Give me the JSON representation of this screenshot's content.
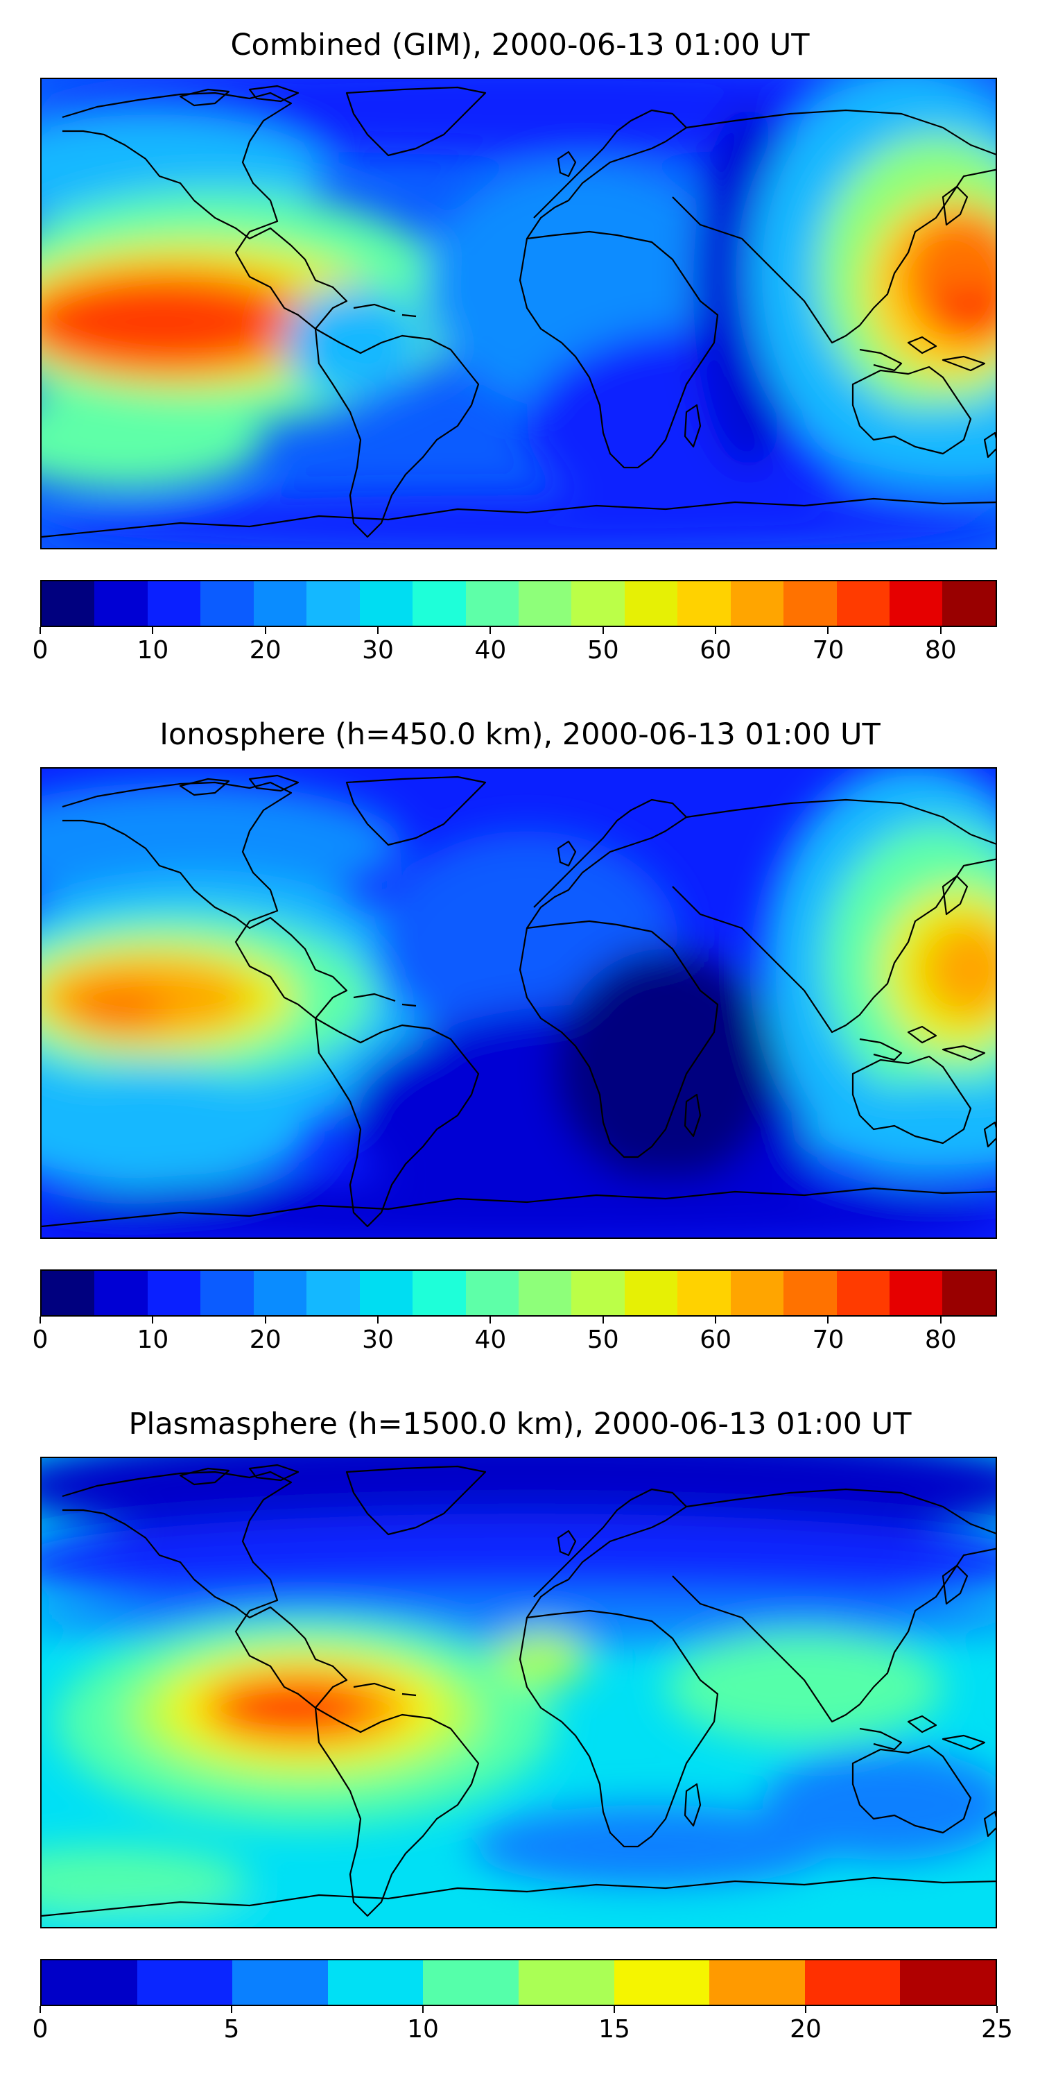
{
  "panels": [
    {
      "title": "Combined (GIM), 2000-06-13 01:00 UT",
      "colorbar": {
        "ticks": [
          "0",
          "10",
          "20",
          "30",
          "40",
          "50",
          "60",
          "70",
          "80"
        ],
        "tick_values": [
          0,
          10,
          20,
          30,
          40,
          50,
          60,
          70,
          80
        ],
        "min": 0,
        "max": 85,
        "step": 5,
        "colors": [
          "#00007f",
          "#0000d4",
          "#0a20ff",
          "#0b5cff",
          "#0a8cff",
          "#14b8ff",
          "#00ddf2",
          "#1effd9",
          "#5effa8",
          "#8eff7a",
          "#bbff48",
          "#e6f005",
          "#ffd200",
          "#ffa500",
          "#ff7200",
          "#ff3b00",
          "#e60000",
          "#990000"
        ]
      }
    },
    {
      "title": "Ionosphere  (h=450.0 km), 2000-06-13 01:00 UT",
      "colorbar": {
        "ticks": [
          "0",
          "10",
          "20",
          "30",
          "40",
          "50",
          "60",
          "70",
          "80"
        ],
        "tick_values": [
          0,
          10,
          20,
          30,
          40,
          50,
          60,
          70,
          80
        ],
        "min": 0,
        "max": 85,
        "step": 5,
        "colors": [
          "#00007f",
          "#0000d4",
          "#0a20ff",
          "#0b5cff",
          "#0a8cff",
          "#14b8ff",
          "#00ddf2",
          "#1effd9",
          "#5effa8",
          "#8eff7a",
          "#bbff48",
          "#e6f005",
          "#ffd200",
          "#ffa500",
          "#ff7200",
          "#ff3b00",
          "#e60000",
          "#990000"
        ]
      }
    },
    {
      "title": "Plasmasphere (h=1500.0 km), 2000-06-13 01:00 UT",
      "colorbar": {
        "ticks": [
          "0",
          "5",
          "10",
          "15",
          "20",
          "25"
        ],
        "tick_values": [
          0,
          5,
          10,
          15,
          20,
          25
        ],
        "min": 0,
        "max": 25,
        "step": 2.5,
        "colors": [
          "#0000c8",
          "#0a26ff",
          "#0a80ff",
          "#00e0f5",
          "#55ffaa",
          "#aaff55",
          "#f5f500",
          "#ff9a00",
          "#ff3000",
          "#b00000"
        ]
      }
    }
  ]
}
